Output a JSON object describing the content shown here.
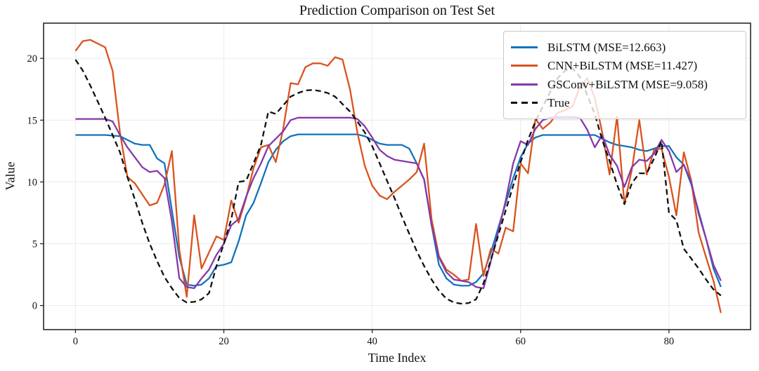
{
  "chart_data": {
    "type": "line",
    "title": "Prediction Comparison on Test Set",
    "xlabel": "Time Index",
    "ylabel": "Value",
    "xlim": [
      -4.3,
      91.0
    ],
    "ylim": [
      -1.95,
      22.85
    ],
    "xticks": [
      0,
      20,
      40,
      60,
      80
    ],
    "yticks": [
      0,
      5,
      10,
      15,
      20
    ],
    "grid": true,
    "grid_color": "#ebebeb",
    "legend_position": "upper right",
    "x": [
      0,
      1,
      2,
      3,
      4,
      5,
      6,
      7,
      8,
      9,
      10,
      11,
      12,
      13,
      14,
      15,
      16,
      17,
      18,
      19,
      20,
      21,
      22,
      23,
      24,
      25,
      26,
      27,
      28,
      29,
      30,
      31,
      32,
      33,
      34,
      35,
      36,
      37,
      38,
      39,
      40,
      41,
      42,
      43,
      44,
      45,
      46,
      47,
      48,
      49,
      50,
      51,
      52,
      53,
      54,
      55,
      56,
      57,
      58,
      59,
      60,
      61,
      62,
      63,
      64,
      65,
      66,
      67,
      68,
      69,
      70,
      71,
      72,
      73,
      74,
      75,
      76,
      77,
      78,
      79,
      80,
      81,
      82,
      83,
      84,
      85,
      86,
      87
    ],
    "series": [
      {
        "name": "BiLSTM (MSE=12.663)",
        "color": "#1073bd",
        "style": "solid",
        "values": [
          13.8,
          13.8,
          13.8,
          13.8,
          13.8,
          13.75,
          13.7,
          13.4,
          13.1,
          13.0,
          13.0,
          11.9,
          11.5,
          7.7,
          3.9,
          1.7,
          1.6,
          1.7,
          2.2,
          3.2,
          3.3,
          3.5,
          5.2,
          7.3,
          8.3,
          9.9,
          11.6,
          12.6,
          13.3,
          13.7,
          13.85,
          13.85,
          13.85,
          13.85,
          13.85,
          13.85,
          13.85,
          13.85,
          13.85,
          13.7,
          13.4,
          13.1,
          13.0,
          13.0,
          13.0,
          12.7,
          11.5,
          10.2,
          6.5,
          3.3,
          2.2,
          1.7,
          1.6,
          1.6,
          1.9,
          2.6,
          4.3,
          6.3,
          8.3,
          10.3,
          12.0,
          13.1,
          13.6,
          13.8,
          13.8,
          13.8,
          13.8,
          13.8,
          13.8,
          13.8,
          13.8,
          13.5,
          13.2,
          13.0,
          12.9,
          12.8,
          12.6,
          12.5,
          12.7,
          12.9,
          12.9,
          12.0,
          11.4,
          9.8,
          7.6,
          5.4,
          3.0,
          1.5
        ]
      },
      {
        "name": "CNN+BiLSTM (MSE=11.427)",
        "color": "#d9531e",
        "style": "solid",
        "values": [
          20.6,
          21.4,
          21.5,
          21.2,
          20.9,
          19.0,
          14.0,
          10.4,
          9.9,
          9.0,
          8.1,
          8.3,
          9.8,
          12.5,
          4.5,
          0.7,
          7.3,
          3.0,
          4.3,
          5.6,
          5.3,
          8.5,
          6.7,
          8.7,
          11.1,
          12.8,
          13.0,
          11.6,
          14.3,
          18.0,
          17.9,
          19.3,
          19.6,
          19.6,
          19.4,
          20.1,
          19.9,
          17.5,
          14.0,
          11.3,
          9.7,
          8.9,
          8.6,
          9.2,
          9.7,
          10.2,
          10.8,
          13.1,
          7.0,
          4.0,
          2.9,
          2.5,
          2.0,
          2.1,
          6.6,
          2.4,
          4.6,
          4.2,
          6.3,
          6.0,
          11.5,
          10.7,
          15.1,
          14.3,
          14.8,
          15.6,
          15.8,
          16.1,
          17.7,
          18.4,
          16.8,
          14.0,
          10.6,
          15.3,
          8.2,
          11.0,
          15.0,
          10.6,
          12.6,
          12.7,
          10.4,
          7.3,
          12.4,
          10.1,
          5.9,
          3.9,
          2.0,
          -0.6
        ]
      },
      {
        "name": "GSConv+BiLSTM (MSE=9.058)",
        "color": "#8639a8",
        "style": "solid",
        "values": [
          15.1,
          15.1,
          15.1,
          15.1,
          15.1,
          14.9,
          13.8,
          12.8,
          12.0,
          11.2,
          10.8,
          10.9,
          10.3,
          6.8,
          2.2,
          1.5,
          1.4,
          2.2,
          2.9,
          4.1,
          5.0,
          6.5,
          7.0,
          8.8,
          10.3,
          11.5,
          12.9,
          13.5,
          14.1,
          15.0,
          15.2,
          15.2,
          15.2,
          15.2,
          15.2,
          15.2,
          15.2,
          15.2,
          15.1,
          14.5,
          13.6,
          12.6,
          12.1,
          11.8,
          11.7,
          11.6,
          11.5,
          10.2,
          6.5,
          3.9,
          2.7,
          2.1,
          2.0,
          1.9,
          1.5,
          1.4,
          3.6,
          6.0,
          8.5,
          11.5,
          13.3,
          13.0,
          14.3,
          15.0,
          15.2,
          15.25,
          15.25,
          15.25,
          15.2,
          14.2,
          12.8,
          13.8,
          12.2,
          11.3,
          9.6,
          11.2,
          11.8,
          11.7,
          12.3,
          13.4,
          12.5,
          10.8,
          11.4,
          10.0,
          7.4,
          5.4,
          3.3,
          2.0
        ]
      },
      {
        "name": "True",
        "color": "#111111",
        "style": "dashed",
        "values": [
          19.9,
          19.0,
          17.8,
          16.5,
          15.2,
          13.8,
          12.4,
          10.4,
          8.6,
          6.7,
          5.0,
          3.6,
          2.3,
          1.4,
          0.6,
          0.25,
          0.3,
          0.5,
          1.0,
          3.2,
          5.0,
          7.0,
          10.0,
          10.1,
          11.5,
          13.0,
          15.7,
          15.5,
          16.2,
          16.9,
          17.2,
          17.4,
          17.45,
          17.35,
          17.2,
          16.9,
          16.3,
          15.7,
          14.9,
          14.0,
          12.9,
          11.5,
          10.1,
          8.7,
          7.2,
          5.8,
          4.4,
          3.2,
          2.1,
          1.2,
          0.55,
          0.25,
          0.15,
          0.2,
          0.5,
          1.8,
          3.7,
          5.7,
          7.7,
          9.7,
          11.6,
          13.4,
          14.9,
          16.1,
          17.3,
          18.4,
          19.0,
          19.2,
          18.5,
          17.0,
          15.5,
          13.4,
          11.7,
          9.8,
          8.2,
          9.9,
          10.7,
          10.7,
          11.9,
          13.3,
          7.5,
          6.9,
          4.6,
          3.8,
          3.0,
          2.1,
          1.3,
          0.8
        ]
      }
    ]
  }
}
